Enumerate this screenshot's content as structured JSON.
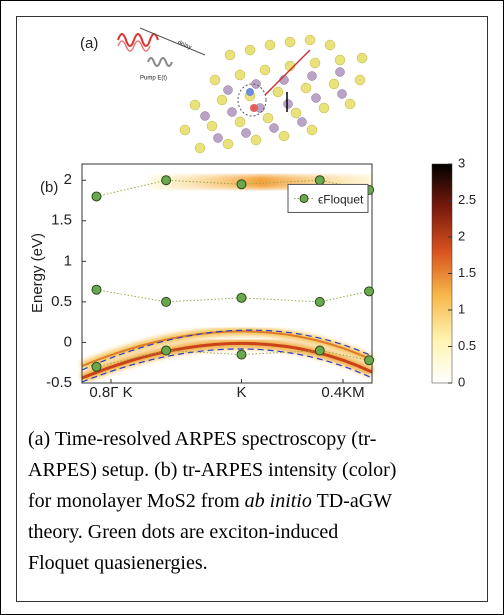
{
  "panel_a": {
    "label": "(a)",
    "delay_label": "delay",
    "pump_label": "Pump E(t)"
  },
  "chart_data": {
    "type": "scatter",
    "panel_label": "(b)",
    "y_label": "Energy (eV)",
    "xlim": [
      0,
      1
    ],
    "xticks": [
      {
        "value": 0.1,
        "label": "0.8Γ K"
      },
      {
        "value": 0.55,
        "label": "K"
      },
      {
        "value": 0.9,
        "label": "0.4KM"
      }
    ],
    "ylim": [
      -0.5,
      2.2
    ],
    "yticks": [
      -0.5,
      0,
      0.5,
      1,
      1.5,
      2
    ],
    "series": [
      {
        "name": "ϵFloquet",
        "color": "#6aa84f",
        "x": [
          0.05,
          0.29,
          0.55,
          0.82,
          0.99,
          null,
          0.05,
          0.29,
          0.55,
          0.82,
          0.99,
          null,
          0.05,
          0.29,
          0.55,
          0.82,
          0.99
        ],
        "values": [
          1.8,
          2.0,
          1.95,
          2.0,
          1.88,
          null,
          0.65,
          0.5,
          0.55,
          0.5,
          0.63,
          null,
          -0.3,
          -0.1,
          -0.15,
          -0.1,
          -0.22
        ]
      }
    ],
    "legend": "upper right",
    "colorbar": {
      "clim": [
        0,
        3
      ],
      "ticks": [
        0,
        0.5,
        1,
        1.5,
        2,
        2.5,
        3
      ]
    }
  },
  "caption": {
    "before": "(a) Time-resolved ARPES spectroscopy (tr-ARPES) setup. (b) tr-ARPES intensity (color) for monolayer MoS2 from ",
    "italic": "ab initio",
    "after": " TD-aGW theory. Green dots are exciton-induced Floquet quasienergies."
  }
}
